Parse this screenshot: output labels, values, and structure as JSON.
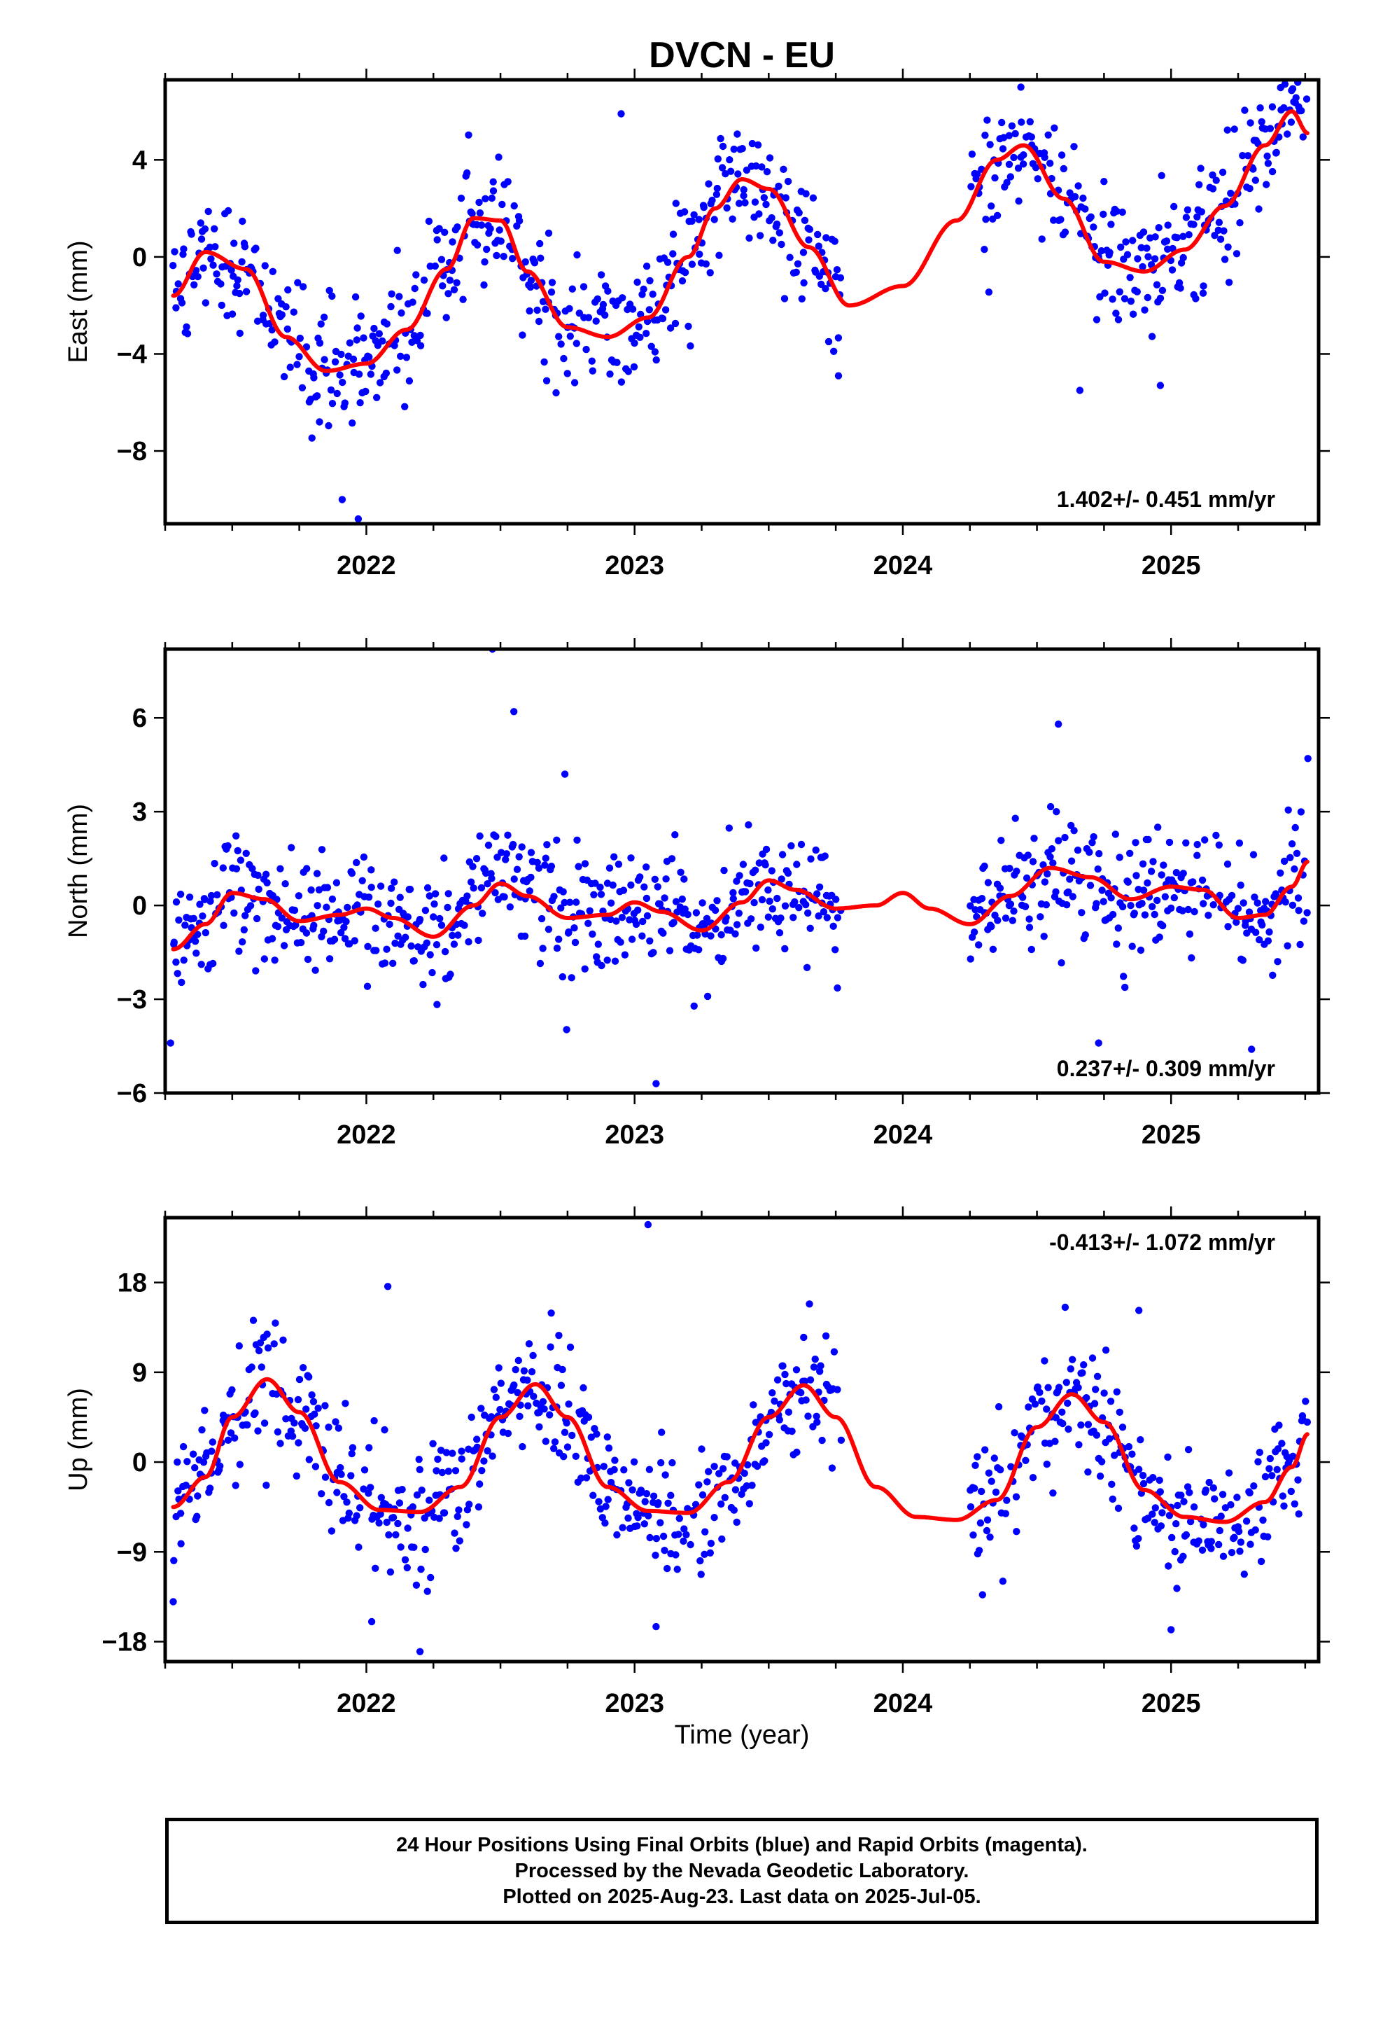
{
  "chart_data": {
    "title": "DVCN - EU",
    "xlabel": "Time (year)",
    "x_tick_labels": [
      "2022",
      "2023",
      "2024",
      "2025"
    ],
    "xlim": [
      2021.25,
      2025.55
    ],
    "data_span": [
      2021.28,
      2025.51
    ],
    "gap": [
      2023.77,
      2024.25
    ],
    "panels": [
      {
        "name": "east",
        "type": "scatter",
        "ylabel": "East (mm)",
        "ylim": [
          -11,
          7.3
        ],
        "yticks": [
          4,
          0,
          -4,
          -8
        ],
        "ytick_labels": [
          "4",
          "0",
          "−4",
          "−8"
        ],
        "rate_label": "1.402+/- 0.451 mm/yr",
        "rate_position": "bottom-right",
        "scatter_amp": 1.3,
        "model_x": [
          2021.28,
          2021.4,
          2021.55,
          2021.7,
          2021.85,
          2022.0,
          2022.15,
          2022.3,
          2022.4,
          2022.5,
          2022.6,
          2022.75,
          2022.9,
          2023.05,
          2023.2,
          2023.3,
          2023.4,
          2023.5,
          2023.65,
          2023.8,
          2024.0,
          2024.2,
          2024.35,
          2024.45,
          2024.6,
          2024.75,
          2024.9,
          2025.05,
          2025.2,
          2025.35,
          2025.45,
          2025.51
        ],
        "model_y": [
          -1.6,
          0.2,
          -0.5,
          -3.3,
          -4.7,
          -4.4,
          -3.0,
          -0.5,
          1.6,
          1.5,
          -0.6,
          -2.9,
          -3.3,
          -2.5,
          0.0,
          2.0,
          3.2,
          2.8,
          0.4,
          -2.0,
          -1.2,
          1.5,
          4.0,
          4.6,
          2.4,
          -0.2,
          -0.6,
          0.3,
          2.1,
          4.6,
          6.0,
          5.1
        ],
        "outliers": [
          [
            2021.97,
            -10.8
          ],
          [
            2021.91,
            -10.0
          ],
          [
            2022.95,
            5.9
          ],
          [
            2024.66,
            -5.5
          ],
          [
            2024.96,
            -5.3
          ],
          [
            2023.76,
            -4.9
          ],
          [
            2024.44,
            7.0
          ]
        ]
      },
      {
        "name": "north",
        "type": "scatter",
        "ylabel": "North (mm)",
        "ylim": [
          -6,
          8.2
        ],
        "yticks": [
          6,
          3,
          0,
          -3,
          -6
        ],
        "ytick_labels": [
          "6",
          "3",
          "0",
          "−3",
          "−6"
        ],
        "rate_label": "0.237+/- 0.309 mm/yr",
        "rate_position": "bottom-right",
        "scatter_amp": 0.95,
        "model_x": [
          2021.28,
          2021.4,
          2021.5,
          2021.62,
          2021.75,
          2021.9,
          2022.0,
          2022.1,
          2022.25,
          2022.4,
          2022.5,
          2022.6,
          2022.75,
          2022.9,
          2023.0,
          2023.1,
          2023.25,
          2023.4,
          2023.5,
          2023.6,
          2023.75,
          2023.9,
          2024.0,
          2024.1,
          2024.25,
          2024.4,
          2024.55,
          2024.7,
          2024.85,
          2025.0,
          2025.12,
          2025.25,
          2025.35,
          2025.45,
          2025.51
        ],
        "model_y": [
          -1.4,
          -0.6,
          0.4,
          0.2,
          -0.5,
          -0.3,
          -0.1,
          -0.4,
          -1.0,
          0.0,
          0.7,
          0.3,
          -0.4,
          -0.3,
          0.1,
          -0.2,
          -0.8,
          0.1,
          0.8,
          0.5,
          -0.1,
          0.0,
          0.4,
          -0.1,
          -0.6,
          0.3,
          1.2,
          0.9,
          0.2,
          0.6,
          0.5,
          -0.4,
          -0.3,
          0.6,
          1.4
        ],
        "outliers": [
          [
            2022.47,
            8.2
          ],
          [
            2022.55,
            6.2
          ],
          [
            2023.08,
            -5.7
          ],
          [
            2025.3,
            -4.6
          ],
          [
            2024.58,
            5.8
          ],
          [
            2025.51,
            4.7
          ],
          [
            2021.27,
            -4.4
          ],
          [
            2022.74,
            4.2
          ],
          [
            2024.73,
            -4.4
          ]
        ]
      },
      {
        "name": "up",
        "type": "scatter",
        "ylabel": "Up (mm)",
        "ylim": [
          -20,
          24.5
        ],
        "yticks": [
          18,
          9,
          0,
          -9,
          -18
        ],
        "ytick_labels": [
          "18",
          "9",
          "0",
          "−9",
          "−18"
        ],
        "rate_label": "-0.413+/- 1.072 mm/yr",
        "rate_position": "top-right",
        "scatter_amp": 3.2,
        "model_x": [
          2021.28,
          2021.4,
          2021.5,
          2021.63,
          2021.75,
          2021.9,
          2022.05,
          2022.2,
          2022.35,
          2022.5,
          2022.63,
          2022.75,
          2022.9,
          2023.05,
          2023.2,
          2023.35,
          2023.5,
          2023.63,
          2023.75,
          2023.9,
          2024.05,
          2024.2,
          2024.35,
          2024.5,
          2024.63,
          2024.75,
          2024.9,
          2025.05,
          2025.2,
          2025.35,
          2025.45,
          2025.51
        ],
        "model_y": [
          -4.5,
          -1.5,
          4.5,
          8.3,
          5.0,
          -2.0,
          -4.8,
          -5.0,
          -2.5,
          4.5,
          7.8,
          4.5,
          -2.5,
          -4.9,
          -5.1,
          -2.0,
          4.5,
          7.7,
          4.5,
          -2.5,
          -5.5,
          -5.8,
          -3.8,
          3.5,
          6.8,
          4.0,
          -2.8,
          -5.5,
          -6.0,
          -4.0,
          -0.5,
          2.8
        ],
        "outliers": [
          [
            2023.05,
            23.8
          ],
          [
            2022.08,
            17.6
          ],
          [
            2022.2,
            -19.0
          ],
          [
            2021.28,
            -14.0
          ],
          [
            2024.88,
            15.2
          ],
          [
            2023.08,
            -16.5
          ],
          [
            2025.0,
            -16.8
          ],
          [
            2022.02,
            -16.0
          ]
        ]
      }
    ],
    "series": [
      {
        "name": "Final Orbits (blue)",
        "color": "#0000ff"
      },
      {
        "name": "Rapid Orbits (magenta)",
        "color": "#ff00ff"
      },
      {
        "name": "model",
        "color": "#ff0000"
      }
    ]
  },
  "caption": {
    "line1": "24 Hour Positions Using Final Orbits (blue) and Rapid Orbits (magenta).",
    "line2": "Processed by the Nevada Geodetic Laboratory.",
    "line3": "Plotted on 2025-Aug-23. Last data on 2025-Jul-05."
  }
}
